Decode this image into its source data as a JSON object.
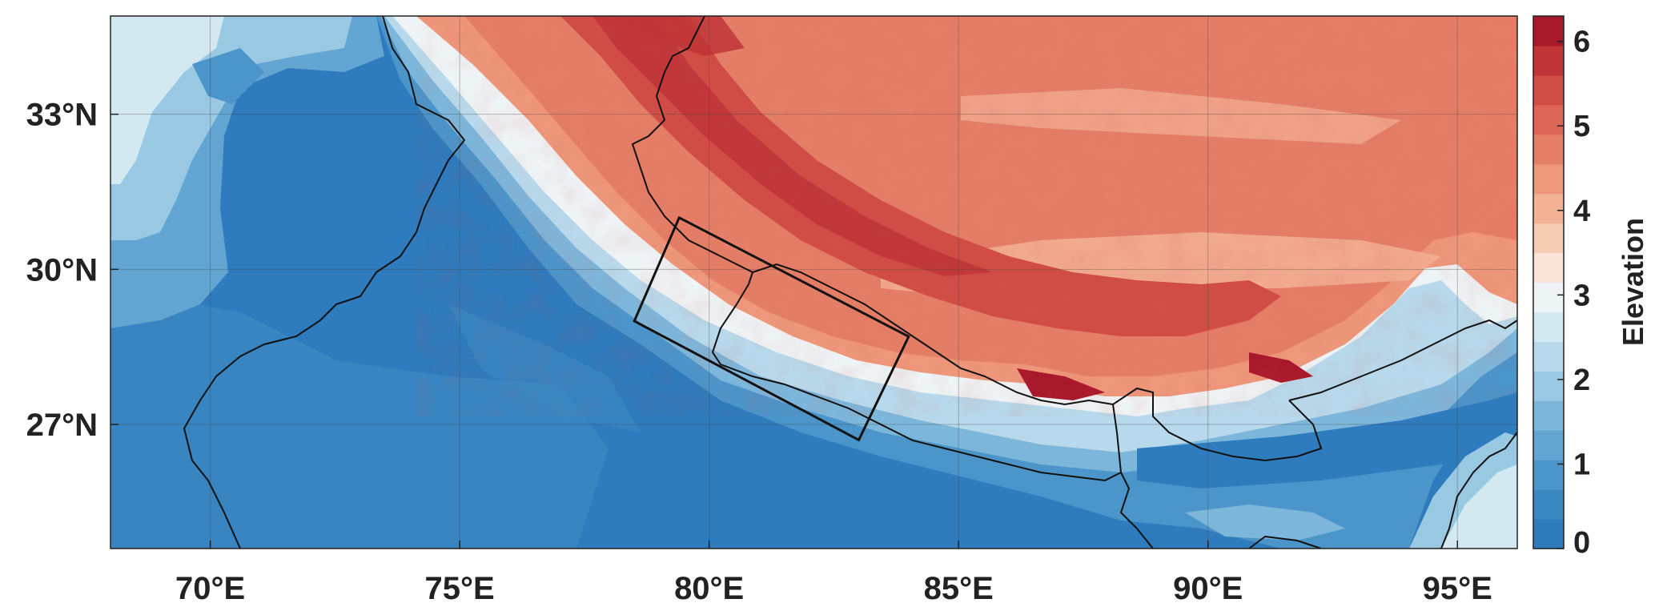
{
  "map": {
    "lon_range": [
      68,
      96.2
    ],
    "lat_range": [
      24.6,
      34.9
    ],
    "lon_ticks": [
      {
        "value": 70,
        "label": "70°E"
      },
      {
        "value": 75,
        "label": "75°E"
      },
      {
        "value": 80,
        "label": "80°E"
      },
      {
        "value": 85,
        "label": "85°E"
      },
      {
        "value": 90,
        "label": "90°E"
      },
      {
        "value": 95,
        "label": "95°E"
      }
    ],
    "lat_ticks": [
      {
        "value": 33,
        "label": "33°N"
      },
      {
        "value": 30,
        "label": "30°N"
      },
      {
        "value": 27,
        "label": "27°N"
      }
    ],
    "grid": true,
    "study_region_box": [
      [
        79.4,
        31.0
      ],
      [
        84.0,
        28.7
      ],
      [
        83.0,
        26.7
      ],
      [
        78.5,
        29.0
      ]
    ]
  },
  "colorbar": {
    "title": "Elevation",
    "min": 0,
    "max": 6.3,
    "ticks": [
      "0",
      "1",
      "2",
      "3",
      "4",
      "5",
      "6"
    ],
    "colors": [
      "#2e7bbd",
      "#3a87c2",
      "#4b95ca",
      "#62a5d2",
      "#7cb6da",
      "#99c8e2",
      "#b7d9eb",
      "#d4e8f2",
      "#eef3f5",
      "#f9e4d9",
      "#f7ccb5",
      "#f3b295",
      "#ee977a",
      "#e57e66",
      "#dc6655",
      "#d04d45",
      "#c03537",
      "#a8182b"
    ]
  }
}
